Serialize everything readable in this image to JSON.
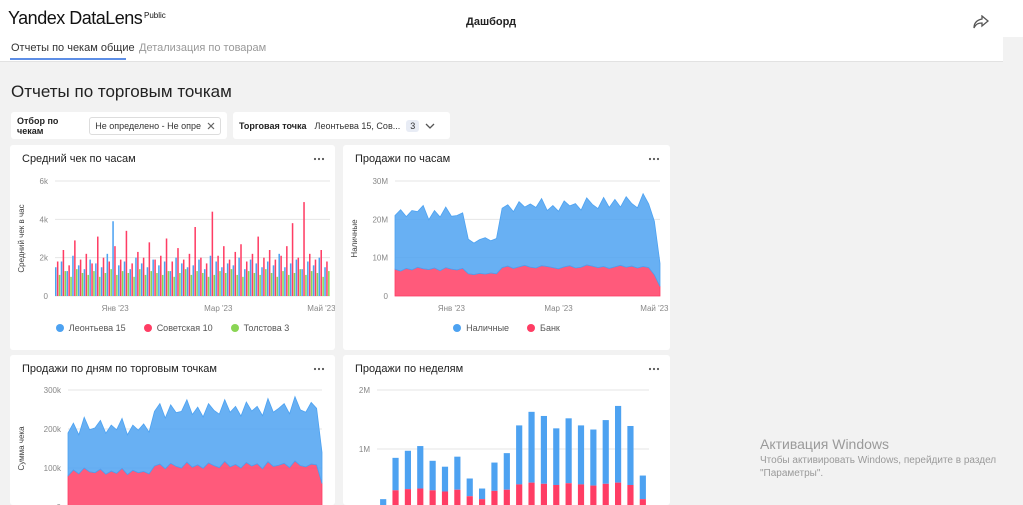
{
  "header": {
    "logo": "Yandex DataLens",
    "badge": "Public",
    "title": "Дашборд"
  },
  "tabs": [
    "Отчеты по чекам общие",
    "Детализация по товарам"
  ],
  "page_title": "Отчеты по торговым точкам",
  "filters": [
    {
      "label": "Отбор по чекам",
      "value": "Не определено - Не опре"
    },
    {
      "label": "Торговая точка",
      "value": "Леонтьева 15, Сов...",
      "count": 3
    }
  ],
  "watermark": [
    "Активация Windows",
    "Чтобы активировать Windows, перейдите в раздел",
    "\"Параметры\"."
  ],
  "chart_data": [
    {
      "type": "bar",
      "title": "Средний чек по часам",
      "y_label": "Средний чек в час",
      "stacked": false,
      "legend": true,
      "grid": true,
      "categories": [
        null,
        null,
        null,
        null,
        null,
        null,
        null,
        null,
        null,
        null,
        "Янв '23",
        null,
        null,
        null,
        null,
        null,
        null,
        null,
        null,
        null,
        null,
        null,
        null,
        null,
        null,
        null,
        null,
        null,
        "Мар '23",
        null,
        null,
        null,
        null,
        null,
        null,
        null,
        null,
        null,
        null,
        null,
        null,
        null,
        null,
        null,
        null,
        null,
        "Май '23",
        null
      ],
      "ylim": [
        0,
        6000
      ],
      "yticks": [
        0,
        {
          "value": 2000,
          "label": "2k"
        },
        {
          "value": 4000,
          "label": "4k"
        },
        {
          "value": 6000,
          "label": "6k"
        }
      ],
      "series": [
        {
          "name": "Леонтьева 15",
          "color": "#4da2f1",
          "values": [
            1500,
            1800,
            1300,
            2100,
            1600,
            1400,
            1900,
            1700,
            1500,
            2200,
            3900,
            1600,
            1800,
            1400,
            2000,
            1700,
            1500,
            1900,
            1600,
            1800,
            1300,
            2000,
            1700,
            1500,
            1600,
            1900,
            1400,
            2100,
            1800,
            1500,
            1700,
            1600,
            2000,
            1400,
            1900,
            1700,
            1500,
            1800,
            1600,
            2200,
            1500,
            1700,
            1900,
            1400,
            1800,
            1600,
            2000,
            1500
          ]
        },
        {
          "name": "Советская 10",
          "color": "#ff3d64",
          "values": [
            1800,
            2400,
            1600,
            2900,
            1900,
            2200,
            1700,
            3100,
            2000,
            1800,
            2600,
            1900,
            3400,
            1700,
            2300,
            2000,
            2800,
            1900,
            2100,
            3000,
            1800,
            2500,
            1900,
            2200,
            3600,
            2000,
            1700,
            4400,
            2100,
            2600,
            1900,
            2300,
            2700,
            1800,
            2200,
            3100,
            2000,
            2400,
            1900,
            2100,
            2600,
            3800,
            2000,
            4900,
            2200,
            1900,
            2400,
            1800
          ]
        },
        {
          "name": "Толстова 3",
          "color": "#8ad554",
          "values": [
            1100,
            1300,
            1000,
            1400,
            1200,
            1100,
            1300,
            1000,
            1200,
            1400,
            1100,
            1300,
            1200,
            1000,
            1400,
            1100,
            1300,
            1200,
            1100,
            1300,
            1000,
            1200,
            1400,
            1100,
            1300,
            1200,
            1000,
            1100,
            1300,
            1200,
            1400,
            1100,
            1000,
            1300,
            1200,
            1100,
            1400,
            1200,
            1000,
            1300,
            1100,
            1200,
            1400,
            1100,
            1300,
            1200,
            1000,
            1300
          ]
        }
      ]
    },
    {
      "type": "area",
      "title": "Продажи по часам",
      "y_label": "Наличные",
      "stacked": true,
      "legend": true,
      "grid": true,
      "categories": [
        null,
        null,
        null,
        null,
        null,
        null,
        null,
        null,
        null,
        null,
        "Янв '23",
        null,
        null,
        null,
        null,
        null,
        null,
        null,
        null,
        null,
        null,
        null,
        null,
        null,
        null,
        null,
        null,
        null,
        null,
        "Мар '23",
        null,
        null,
        null,
        null,
        null,
        null,
        null,
        null,
        null,
        null,
        null,
        null,
        null,
        null,
        null,
        null,
        "Май '23",
        null
      ],
      "ylim": [
        0,
        30000000
      ],
      "yticks": [
        0,
        {
          "value": 10000000,
          "label": "10M"
        },
        {
          "value": 20000000,
          "label": "20M"
        },
        {
          "value": 30000000,
          "label": "30M"
        }
      ],
      "series": [
        {
          "name": "Наличные",
          "color": "#4da2f1",
          "values": [
            14000000,
            16000000,
            13500000,
            15500000,
            14500000,
            16500000,
            13000000,
            15000000,
            14000000,
            15800000,
            13800000,
            14200000,
            14500000,
            9000000,
            8200000,
            8800000,
            9500000,
            8400000,
            9200000,
            15500000,
            16000000,
            14800000,
            17000000,
            15200000,
            16500000,
            15800000,
            17500000,
            14600000,
            16200000,
            15000000,
            17200000,
            15600000,
            16800000,
            14900000,
            17500000,
            16100000,
            15400000,
            18000000,
            15900000,
            17600000,
            15200000,
            18400000,
            16300000,
            15700000,
            19000000,
            16600000,
            14000000,
            6000000
          ]
        },
        {
          "name": "Банк",
          "color": "#ff3d64",
          "values": [
            7000000,
            6500000,
            7200000,
            6800000,
            7500000,
            7100000,
            6900000,
            7300000,
            6600000,
            7400000,
            7000000,
            6800000,
            7200000,
            5800000,
            5600000,
            5900000,
            5700000,
            6000000,
            5800000,
            7400000,
            7800000,
            7200000,
            7600000,
            8000000,
            7500000,
            7300000,
            7900000,
            7700000,
            7400000,
            7100000,
            7600000,
            7900000,
            7300000,
            7500000,
            8100000,
            7800000,
            7400000,
            7700000,
            7200000,
            7600000,
            8000000,
            7500000,
            7800000,
            7300000,
            7700000,
            7400000,
            5500000,
            2500000
          ]
        }
      ]
    },
    {
      "type": "area",
      "title": "Продажи по дням по торговым точкам",
      "y_label": "Сумма чека",
      "stacked": true,
      "legend": false,
      "grid": true,
      "ylim": [
        0,
        300000
      ],
      "yticks": [
        0,
        {
          "value": 100000,
          "label": "100k"
        },
        {
          "value": 200000,
          "label": "200k"
        },
        {
          "value": 300000,
          "label": "300k"
        }
      ],
      "series": [
        {
          "color": "#4da2f1",
          "values": [
            110000,
            120000,
            100000,
            130000,
            108000,
            115000,
            125000,
            105000,
            118000,
            112000,
            128000,
            102000,
            116000,
            109000,
            122000,
            107000,
            140000,
            155000,
            130000,
            150000,
            138000,
            145000,
            160000,
            135000,
            148000,
            132000,
            152000,
            142000,
            137000,
            158000,
            140000,
            149000,
            133000,
            155000,
            141000,
            147000,
            136000,
            162000,
            139000,
            146000,
            153000,
            138000,
            165000,
            143000,
            140000,
            158000,
            145000,
            80000
          ]
        },
        {
          "color": "#ff3d64",
          "values": [
            80000,
            95000,
            85000,
            100000,
            90000,
            88000,
            97000,
            84000,
            92000,
            86000,
            99000,
            83000,
            94000,
            88000,
            91000,
            85000,
            105000,
            110000,
            98000,
            112000,
            104000,
            100000,
            115000,
            102000,
            108000,
            99000,
            113000,
            106000,
            101000,
            117000,
            103000,
            109000,
            100000,
            114000,
            105000,
            111000,
            98000,
            116000,
            104000,
            107000,
            112000,
            101000,
            118000,
            106000,
            103000,
            110000,
            108000,
            60000
          ]
        }
      ]
    },
    {
      "type": "bar",
      "title": "Продажи по неделям",
      "stacked": true,
      "legend": false,
      "grid": true,
      "ylim": [
        0,
        2000000
      ],
      "yticks": [
        0,
        {
          "value": 1000000,
          "label": "1M"
        },
        {
          "value": 2000000,
          "label": "2M"
        }
      ],
      "series": [
        {
          "color": "#4da2f1",
          "values": [
            100000,
            550000,
            650000,
            720000,
            500000,
            420000,
            560000,
            300000,
            180000,
            480000,
            620000,
            1000000,
            1200000,
            1150000,
            960000,
            1100000,
            1000000,
            950000,
            1080000,
            1300000,
            1000000,
            400000
          ]
        },
        {
          "color": "#ff3d64",
          "values": [
            50000,
            300000,
            320000,
            330000,
            300000,
            280000,
            310000,
            200000,
            150000,
            290000,
            310000,
            400000,
            430000,
            410000,
            390000,
            420000,
            400000,
            380000,
            410000,
            430000,
            390000,
            150000
          ]
        }
      ]
    }
  ]
}
